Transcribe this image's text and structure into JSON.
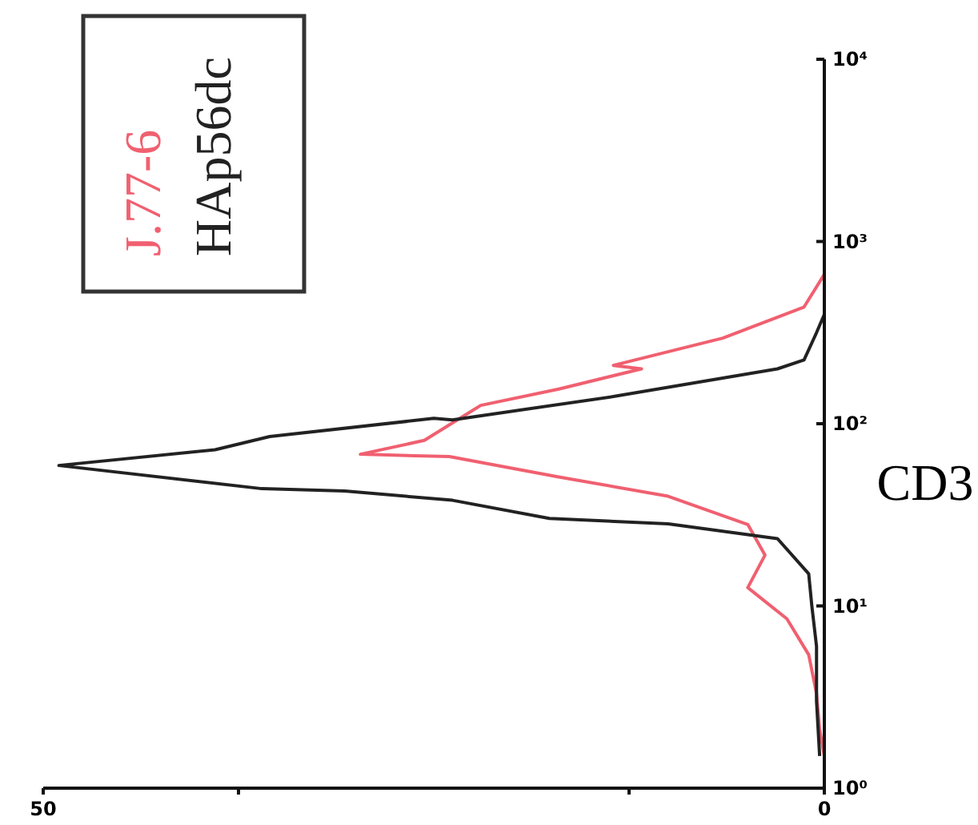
{
  "chart_data": {
    "type": "line",
    "ylabel": "CD3",
    "log": "y",
    "ylim": [
      1,
      10000
    ],
    "yticks": [
      {
        "value": 1,
        "label": "10⁰"
      },
      {
        "value": 10,
        "label": "10¹"
      },
      {
        "value": 100,
        "label": "10²"
      },
      {
        "value": 1000,
        "label": "10³"
      },
      {
        "value": 10000,
        "label": "10⁴"
      }
    ],
    "xlim": [
      50,
      0
    ],
    "xticks": [
      50,
      {
        "value": 37.5,
        "label": null
      },
      {
        "value": 12.5,
        "label": null
      },
      0
    ],
    "legend": "top left",
    "series": [
      {
        "name": "J.77-6",
        "color": "#f06070",
        "values": [
          1.5,
          2.1,
          3.3,
          5.4,
          8.5,
          12.6,
          19,
          28,
          40,
          51,
          66,
          68,
          81,
          126,
          155,
          200,
          209,
          295,
          437,
          661
        ],
        "x": [
          0,
          0.3,
          0.5,
          1,
          2.4,
          4.9,
          3.8,
          4.9,
          10,
          17,
          24,
          29.7,
          25.6,
          22,
          17,
          11.7,
          13.5,
          6.5,
          1.3,
          0
        ]
      },
      {
        "name": "HAp56dc",
        "color": "#222222",
        "values": [
          1.5,
          3,
          6,
          10,
          15,
          23.4,
          28.2,
          30.2,
          38,
          42.7,
          44,
          59,
          72,
          85,
          107,
          105,
          141,
          200,
          224,
          316,
          398
        ],
        "x": [
          0.3,
          0.5,
          0.5,
          0.8,
          1,
          3,
          10,
          17.6,
          23.8,
          30.7,
          36,
          49,
          39,
          35.5,
          25,
          23.8,
          13.5,
          3,
          1.3,
          0.5,
          0
        ]
      }
    ]
  }
}
